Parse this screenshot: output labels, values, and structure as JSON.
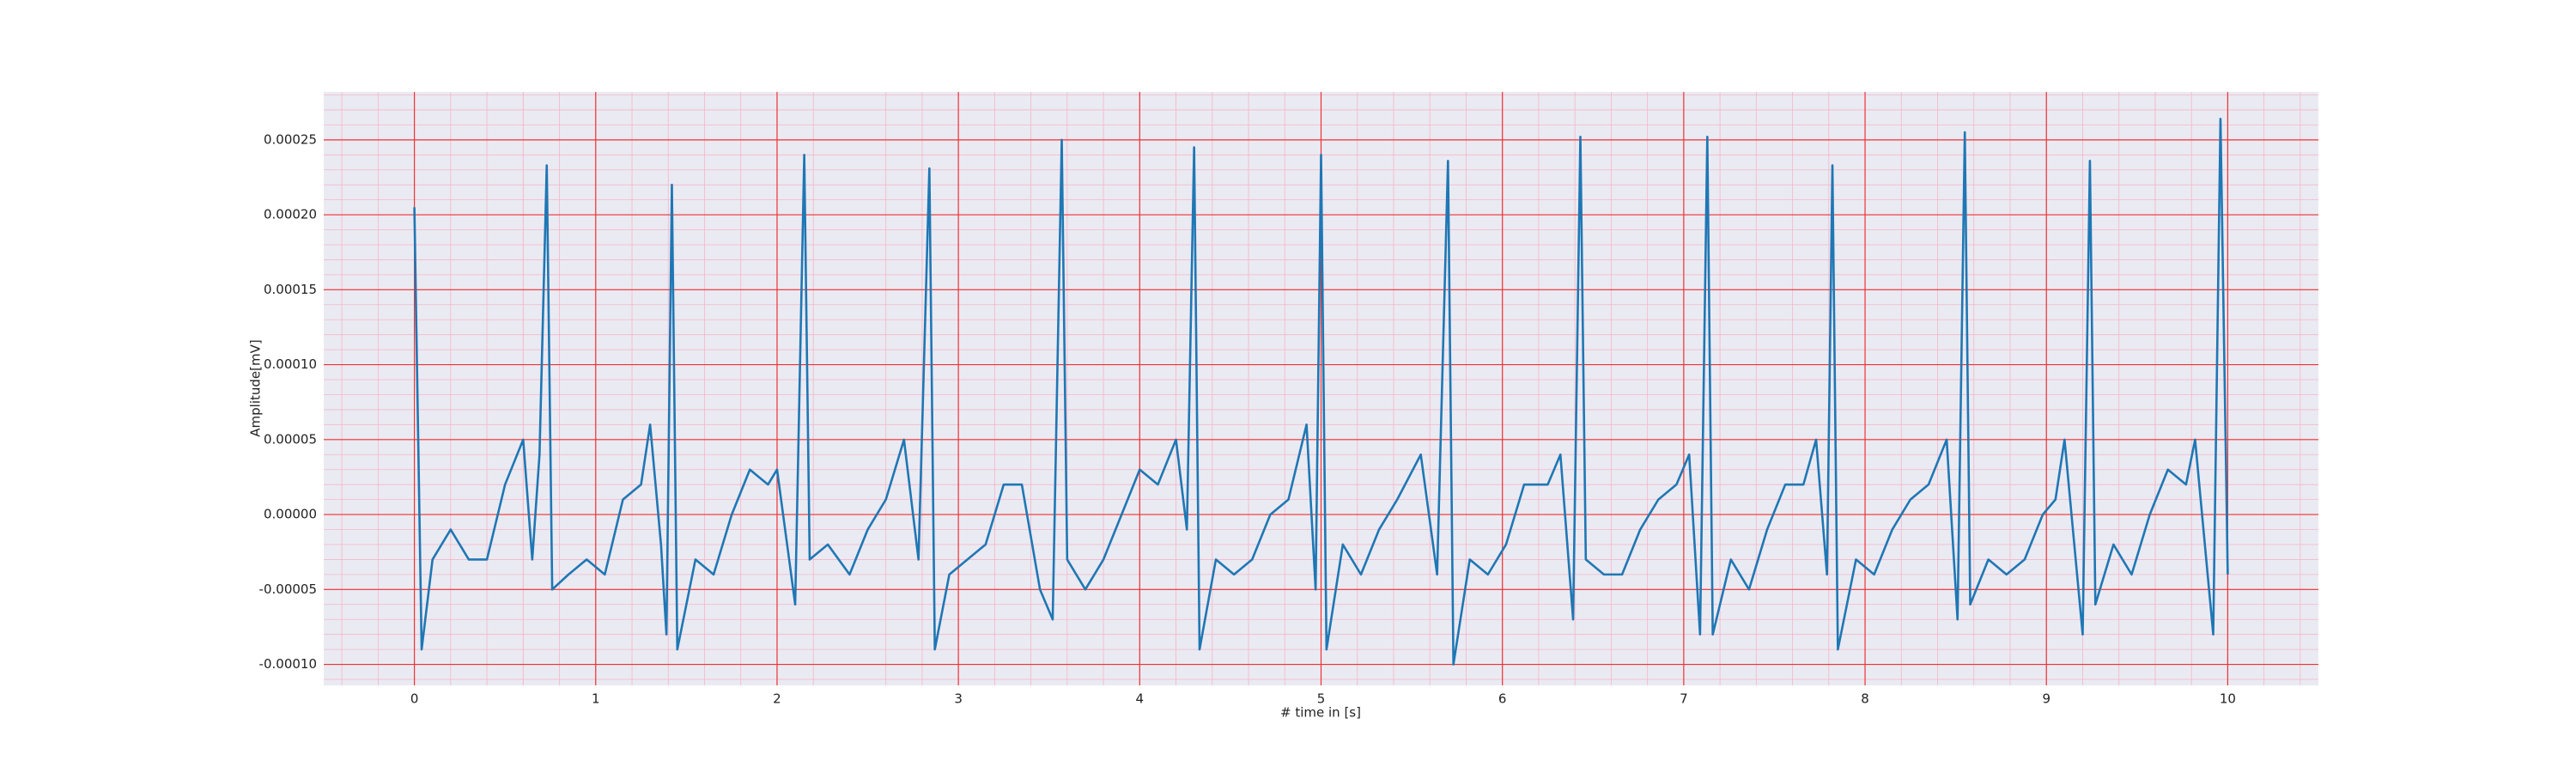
{
  "chart_data": {
    "type": "line",
    "xlabel": "# time in [s]",
    "ylabel": "Amplitude[mV]",
    "color": "#1f77b4",
    "x": [
      0.0,
      0.04,
      0.1,
      0.2,
      0.3,
      0.4,
      0.5,
      0.6,
      0.65,
      0.69,
      0.73,
      0.76,
      0.85,
      0.95,
      1.05,
      1.15,
      1.25,
      1.3,
      1.36,
      1.39,
      1.42,
      1.45,
      1.55,
      1.65,
      1.75,
      1.85,
      1.95,
      2.0,
      2.1,
      2.15,
      2.18,
      2.28,
      2.4,
      2.5,
      2.6,
      2.7,
      2.78,
      2.84,
      2.87,
      2.95,
      3.05,
      3.15,
      3.25,
      3.35,
      3.45,
      3.52,
      3.57,
      3.6,
      3.7,
      3.8,
      3.9,
      4.0,
      4.1,
      4.2,
      4.26,
      4.3,
      4.33,
      4.42,
      4.52,
      4.62,
      4.72,
      4.82,
      4.92,
      4.97,
      5.0,
      5.03,
      5.12,
      5.22,
      5.32,
      5.42,
      5.55,
      5.64,
      5.7,
      5.73,
      5.82,
      5.92,
      6.02,
      6.12,
      6.25,
      6.32,
      6.39,
      6.43,
      6.46,
      6.56,
      6.66,
      6.76,
      6.86,
      6.96,
      7.03,
      7.09,
      7.13,
      7.16,
      7.26,
      7.36,
      7.46,
      7.56,
      7.66,
      7.73,
      7.79,
      7.82,
      7.85,
      7.95,
      8.05,
      8.15,
      8.25,
      8.35,
      8.45,
      8.51,
      8.55,
      8.58,
      8.68,
      8.78,
      8.88,
      8.98,
      9.05,
      9.1,
      9.2,
      9.24,
      9.27,
      9.37,
      9.47,
      9.57,
      9.67,
      9.77,
      9.82,
      9.92,
      9.96,
      10.0
    ],
    "values": [
      0.000205,
      -9e-05,
      -3e-05,
      -1e-05,
      -3e-05,
      -3e-05,
      2e-05,
      5e-05,
      -3e-05,
      4e-05,
      0.000233,
      -5e-05,
      -4e-05,
      -3e-05,
      -4e-05,
      1e-05,
      2e-05,
      6e-05,
      -2e-05,
      -8e-05,
      0.00022,
      -9e-05,
      -3e-05,
      -4e-05,
      0.0,
      3e-05,
      2e-05,
      3e-05,
      -6e-05,
      0.00024,
      -3e-05,
      -2e-05,
      -4e-05,
      -1e-05,
      1e-05,
      5e-05,
      -3e-05,
      0.000231,
      -9e-05,
      -4e-05,
      -3e-05,
      -2e-05,
      2e-05,
      2e-05,
      -5e-05,
      -7e-05,
      0.00025,
      -3e-05,
      -5e-05,
      -3e-05,
      0.0,
      3e-05,
      2e-05,
      5e-05,
      -1e-05,
      0.000245,
      -9e-05,
      -3e-05,
      -4e-05,
      -3e-05,
      0.0,
      1e-05,
      6e-05,
      -5e-05,
      0.00024,
      -9e-05,
      -2e-05,
      -4e-05,
      -1e-05,
      1e-05,
      4e-05,
      -4e-05,
      0.000236,
      -0.0001,
      -3e-05,
      -4e-05,
      -2e-05,
      2e-05,
      2e-05,
      4e-05,
      -7e-05,
      0.000252,
      -3e-05,
      -4e-05,
      -4e-05,
      -1e-05,
      1e-05,
      2e-05,
      4e-05,
      -8e-05,
      0.000252,
      -8e-05,
      -3e-05,
      -5e-05,
      -1e-05,
      2e-05,
      2e-05,
      5e-05,
      -4e-05,
      0.000233,
      -9e-05,
      -3e-05,
      -4e-05,
      -1e-05,
      1e-05,
      2e-05,
      5e-05,
      -7e-05,
      0.000255,
      -6e-05,
      -3e-05,
      -4e-05,
      -3e-05,
      0.0,
      1e-05,
      5e-05,
      -8e-05,
      0.000236,
      -6e-05,
      -2e-05,
      -4e-05,
      0.0,
      3e-05,
      2e-05,
      5e-05,
      -8e-05,
      0.000264,
      -4e-05
    ],
    "xlim": [
      -0.5,
      10.5
    ],
    "xticks": [
      0,
      1,
      2,
      3,
      4,
      5,
      6,
      7,
      8,
      9,
      10
    ],
    "ylim": [
      -0.000114,
      0.000282
    ],
    "yticks": [
      {
        "value": -0.0001,
        "label": "-0.00010"
      },
      {
        "value": -5e-05,
        "label": "-0.00005"
      },
      {
        "value": 0,
        "label": "0.00000"
      },
      {
        "value": 5e-05,
        "label": "0.00005"
      },
      {
        "value": 0.0001,
        "label": "0.00010"
      },
      {
        "value": 0.00015,
        "label": "0.00015"
      },
      {
        "value": 0.0002,
        "label": "0.00020"
      },
      {
        "value": 0.00025,
        "label": "0.00025"
      }
    ],
    "grid": true,
    "minor_grid": true
  }
}
